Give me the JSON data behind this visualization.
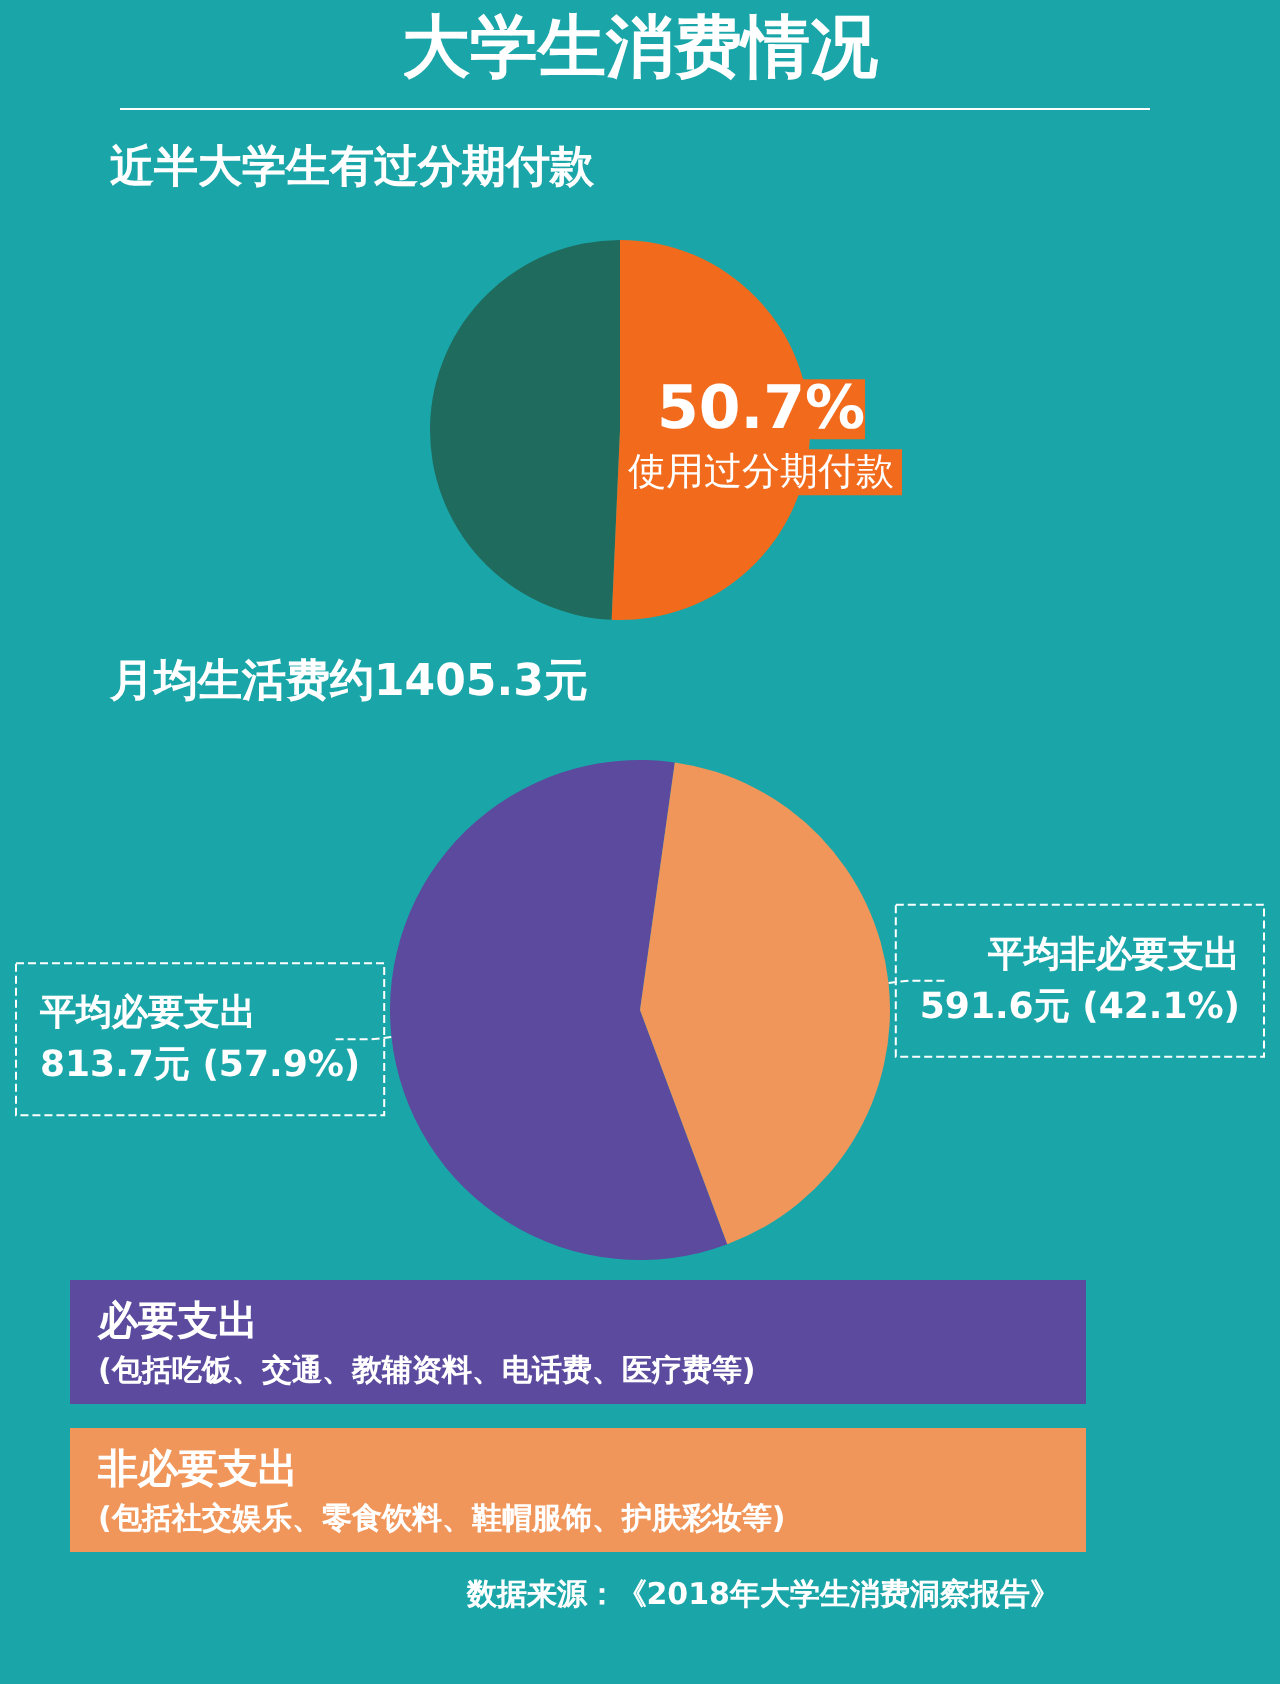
{
  "chart_data": [
    {
      "type": "pie",
      "title": "大学生消费情况",
      "subtitle": "近半大学生有过分期付款",
      "categories": [
        null,
        "使用过分期付款"
      ],
      "values": [
        49.3,
        50.7
      ],
      "colors": [
        "#1f6b5e",
        "#f26a1c"
      ],
      "value_labels": [
        null,
        "50.7%"
      ]
    },
    {
      "type": "pie",
      "title": "月均生活费约1405.3元",
      "categories": [
        "平均必要支出",
        "平均非必要支出"
      ],
      "values": [
        813.7,
        591.6
      ],
      "colors": [
        "#5b4a9e",
        "#f0965a"
      ],
      "value_labels": [
        "813.7元 (57.9%)",
        "591.6元 (42.1%)"
      ],
      "annotations": [
        "必要支出\n(包括吃饭、交通、教辅资料、电话费、医疗费等)",
        "非必要支出\n(包括社交娱乐、零食饮料、鞋帽服饰、护肤彩妆等)",
        "数据来源：《2018年大学生消费洞察报告》"
      ]
    }
  ]
}
